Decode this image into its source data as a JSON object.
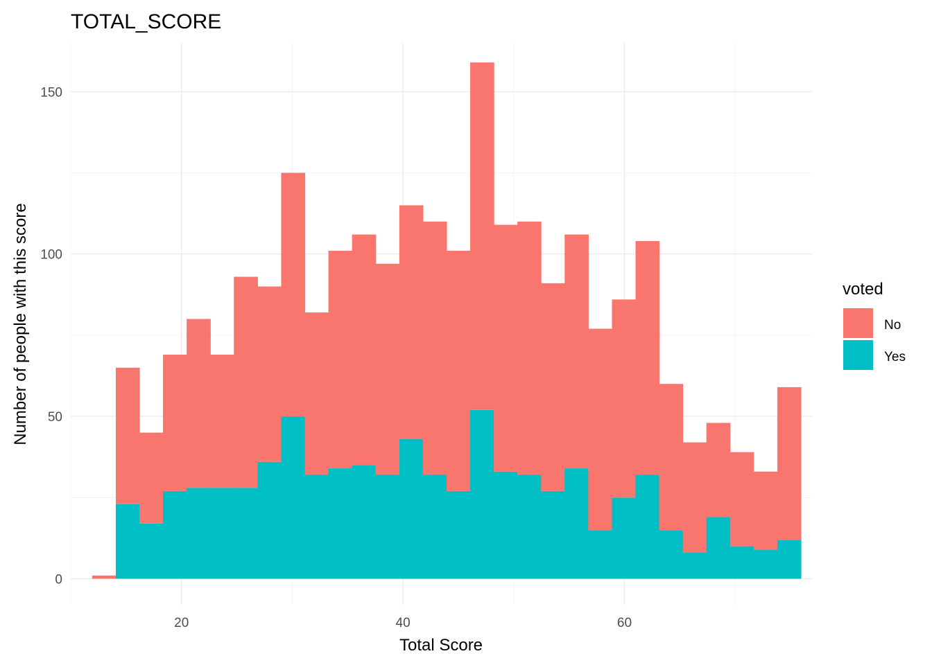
{
  "chart_data": {
    "type": "bar",
    "subtype": "stacked-histogram",
    "title": "TOTAL_SCORE",
    "xlabel": "Total Score",
    "ylabel": "Number of people with this score",
    "xlim": [
      10,
      77
    ],
    "ylim": [
      -8,
      165
    ],
    "x_ticks": [
      20,
      40,
      60
    ],
    "y_ticks": [
      0,
      50,
      100,
      150
    ],
    "grid": true,
    "legend": {
      "title": "voted",
      "position": "right"
    },
    "bin_width": 2.133,
    "bin_starts": [
      11.93,
      14.07,
      16.2,
      18.33,
      20.47,
      22.6,
      24.73,
      26.87,
      29.0,
      31.13,
      33.27,
      35.4,
      37.53,
      39.67,
      41.8,
      43.93,
      46.07,
      48.2,
      50.33,
      52.47,
      54.6,
      56.73,
      58.87,
      61.0,
      63.13,
      65.27,
      67.4,
      69.53,
      71.67,
      73.8
    ],
    "series": [
      {
        "name": "Yes",
        "color": "#00BFC4",
        "values": [
          0,
          23,
          17,
          27,
          28,
          28,
          28,
          36,
          50,
          32,
          34,
          35,
          32,
          43,
          32,
          27,
          52,
          33,
          32,
          27,
          34,
          15,
          25,
          32,
          15,
          8,
          19,
          10,
          9,
          12
        ]
      },
      {
        "name": "No",
        "color": "#F8766D",
        "values": [
          1,
          42,
          28,
          42,
          52,
          41,
          65,
          54,
          75,
          50,
          67,
          71,
          65,
          72,
          78,
          74,
          107,
          76,
          78,
          64,
          72,
          62,
          61,
          72,
          45,
          34,
          29,
          29,
          24,
          47
        ]
      }
    ]
  }
}
